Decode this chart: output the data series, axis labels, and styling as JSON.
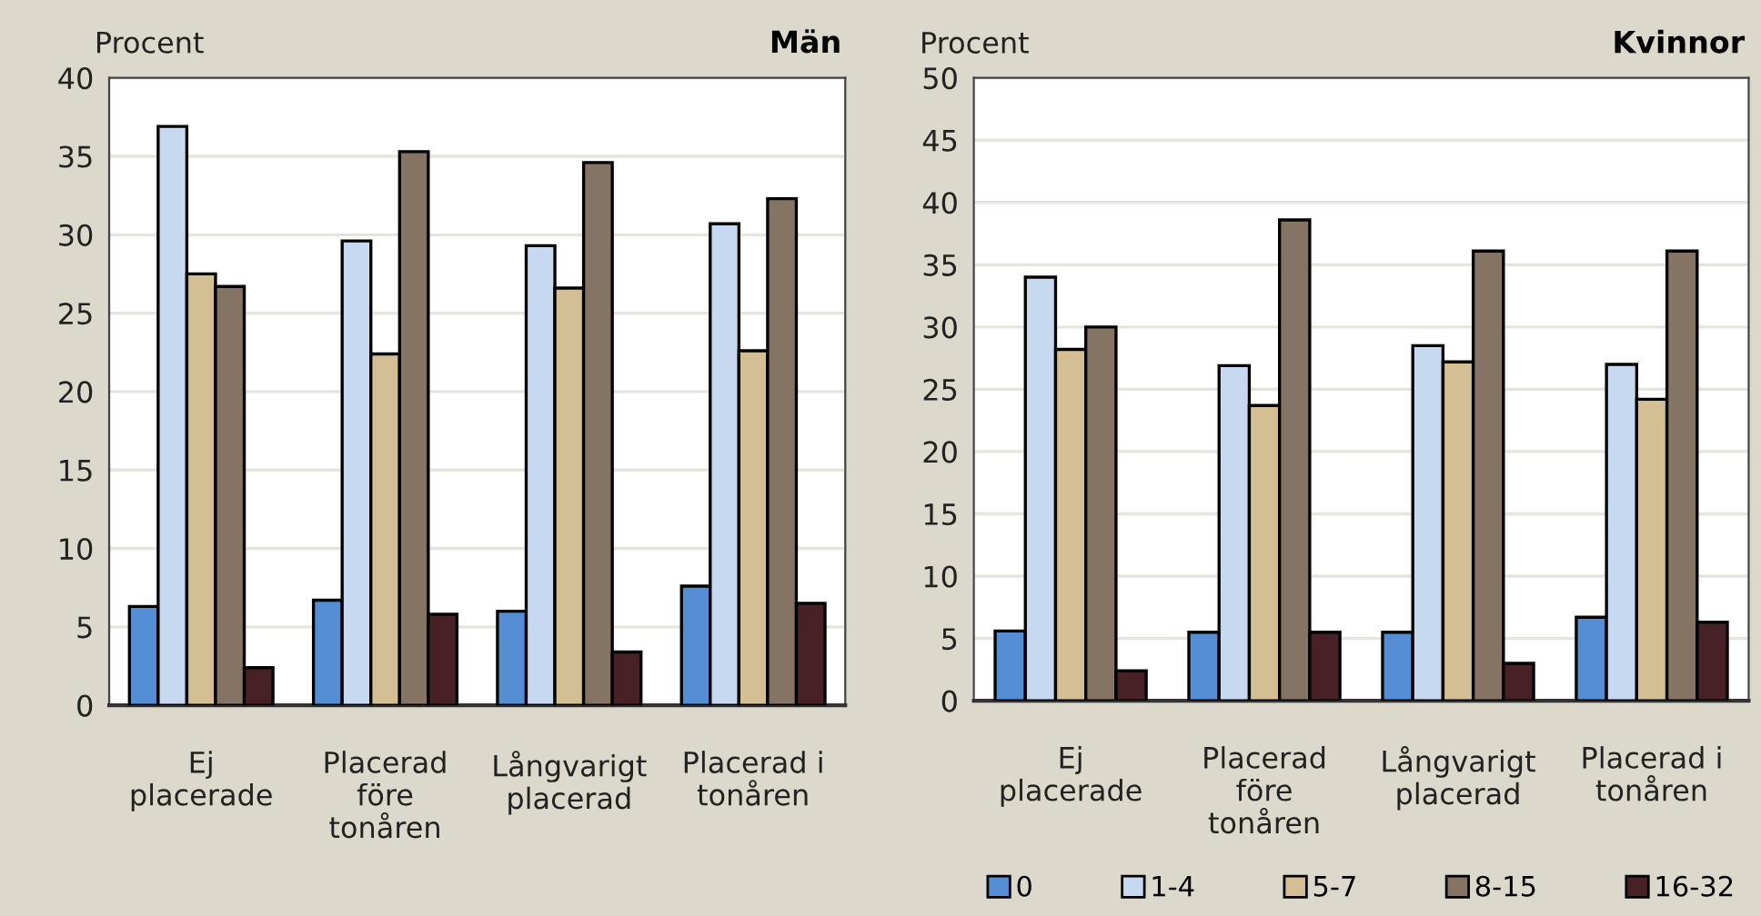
{
  "chart_data": [
    {
      "type": "bar",
      "title": "Män",
      "ylabel": "Procent",
      "categories": [
        "Ej\nplacerade",
        "Placerad\nföre\ntonåren",
        "Långvarigt\nplacerad",
        "Placerad i\ntonåren"
      ],
      "series": [
        {
          "color": "#558ed5",
          "values": [
            6.3,
            6.7,
            6.0,
            7.6
          ]
        },
        {
          "color": "#c6d9f1",
          "values": [
            36.9,
            29.6,
            29.3,
            30.7
          ]
        },
        {
          "color": "#d4bf94",
          "values": [
            27.5,
            22.4,
            26.6,
            22.6
          ]
        },
        {
          "color": "#857463",
          "values": [
            26.7,
            35.3,
            34.6,
            32.3
          ]
        },
        {
          "color": "#472126",
          "values": [
            2.4,
            5.8,
            3.4,
            6.5
          ]
        }
      ],
      "ylim": [
        0,
        40
      ],
      "yticks": [
        0,
        5,
        10,
        15,
        20,
        25,
        30,
        35,
        40
      ],
      "grid": "y",
      "legend": false
    },
    {
      "type": "bar",
      "title": "Kvinnor",
      "ylabel": "Procent",
      "categories": [
        "Ej\nplacerade",
        "Placerad\nföre\ntonåren",
        "Långvarigt\nplacerad",
        "Placerad i\ntonåren"
      ],
      "series": [
        {
          "name": "0",
          "color": "#558ed5",
          "values": [
            5.6,
            5.5,
            5.5,
            6.7
          ]
        },
        {
          "name": "1-4",
          "color": "#c6d9f1",
          "values": [
            34.0,
            26.9,
            28.5,
            27.0
          ]
        },
        {
          "name": "5-7",
          "color": "#d4bf94",
          "values": [
            28.2,
            23.7,
            27.2,
            24.2
          ]
        },
        {
          "name": "8-15",
          "color": "#857463",
          "values": [
            30.0,
            38.6,
            36.1,
            36.1
          ]
        },
        {
          "name": "16-32",
          "color": "#472126",
          "values": [
            2.4,
            5.5,
            3.0,
            6.3
          ]
        }
      ],
      "ylim": [
        0,
        50
      ],
      "yticks": [
        0,
        5,
        10,
        15,
        20,
        25,
        30,
        35,
        40,
        45,
        50
      ],
      "grid": "y",
      "legend": "bottom"
    }
  ]
}
